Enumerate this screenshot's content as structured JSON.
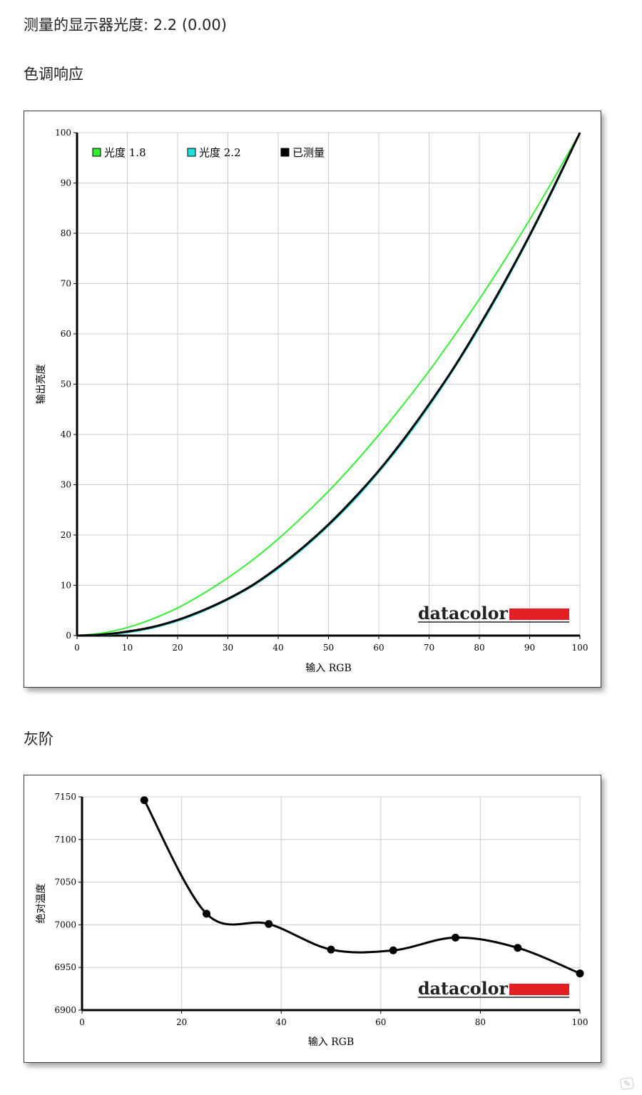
{
  "header": {
    "gamma_line": "测量的显示器光度:  2.2 (0.00)"
  },
  "sections": {
    "tone_response": "色调响应",
    "grayscale": "灰阶"
  },
  "brand": {
    "logo_text": "datacolor",
    "accent_color": "#e31e24"
  },
  "colors": {
    "gamma18": "#33ee33",
    "gamma22": "#22dddd",
    "measured": "#000000",
    "grid": "#cccccc"
  },
  "chart_data": [
    {
      "type": "line",
      "xlabel": "输入 RGB",
      "ylabel": "输出亮度",
      "xlim": [
        0,
        100
      ],
      "ylim": [
        0,
        100
      ],
      "xticks": [
        0,
        10,
        20,
        30,
        40,
        50,
        60,
        70,
        80,
        90,
        100
      ],
      "yticks": [
        0,
        10,
        20,
        30,
        40,
        50,
        60,
        70,
        80,
        90,
        100
      ],
      "grid": true,
      "legend_position": "top-left",
      "x": [
        0,
        5,
        10,
        15,
        20,
        25,
        30,
        35,
        40,
        45,
        50,
        55,
        60,
        65,
        70,
        75,
        80,
        85,
        90,
        95,
        100
      ],
      "series": [
        {
          "name": "光度 1.8",
          "color": "#33ee33",
          "values": [
            0,
            0.5,
            1.6,
            3.3,
            5.5,
            8.3,
            11.5,
            15.1,
            19.2,
            23.8,
            28.7,
            34.1,
            39.9,
            46.1,
            52.6,
            59.6,
            66.9,
            74.6,
            82.7,
            91.2,
            100
          ]
        },
        {
          "name": "光度 2.2",
          "color": "#22dddd",
          "values": [
            0,
            0.1,
            0.6,
            1.5,
            2.9,
            4.8,
            7.1,
            9.9,
            13.3,
            17.3,
            21.8,
            26.8,
            32.5,
            38.7,
            45.6,
            53.1,
            61.2,
            69.9,
            79.3,
            89.3,
            100
          ]
        },
        {
          "name": "已测量",
          "color": "#000000",
          "values": [
            0,
            0.2,
            0.8,
            1.7,
            3.1,
            5.0,
            7.3,
            10.1,
            13.6,
            17.6,
            22.1,
            27.2,
            32.8,
            39.1,
            46.0,
            53.4,
            61.6,
            70.3,
            79.6,
            89.6,
            100
          ]
        }
      ]
    },
    {
      "type": "line",
      "xlabel": "输入 RGB",
      "ylabel": "绝对温度",
      "xlim": [
        0,
        100
      ],
      "ylim": [
        6900,
        7150
      ],
      "xticks": [
        0,
        20,
        40,
        60,
        80,
        100
      ],
      "yticks": [
        6900,
        6950,
        7000,
        7050,
        7100,
        7150
      ],
      "grid": true,
      "x": [
        12.5,
        25,
        37.5,
        50,
        62.5,
        75,
        87.5,
        100
      ],
      "series": [
        {
          "color": "#000000",
          "values": [
            7146,
            7013,
            7001,
            6971,
            6970,
            6985,
            6973,
            6943
          ]
        }
      ]
    }
  ]
}
